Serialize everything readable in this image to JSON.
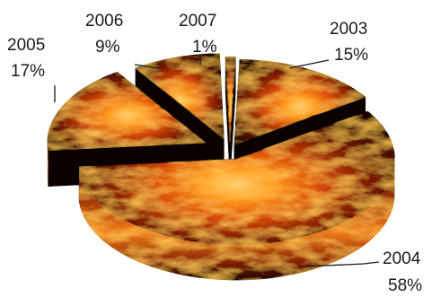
{
  "chart_data": {
    "type": "pie",
    "style": "3D exploded pie, flame texture",
    "title": "",
    "slices": [
      {
        "label": "2003",
        "percent": "15%",
        "value": 15
      },
      {
        "label": "2004",
        "percent": "58%",
        "value": 58
      },
      {
        "label": "2005",
        "percent": "17%",
        "value": 17
      },
      {
        "label": "2006",
        "percent": "9%",
        "value": 9
      },
      {
        "label": "2007",
        "percent": "1%",
        "value": 1
      }
    ],
    "legend": "none",
    "data_labels": "outside with leader lines"
  }
}
